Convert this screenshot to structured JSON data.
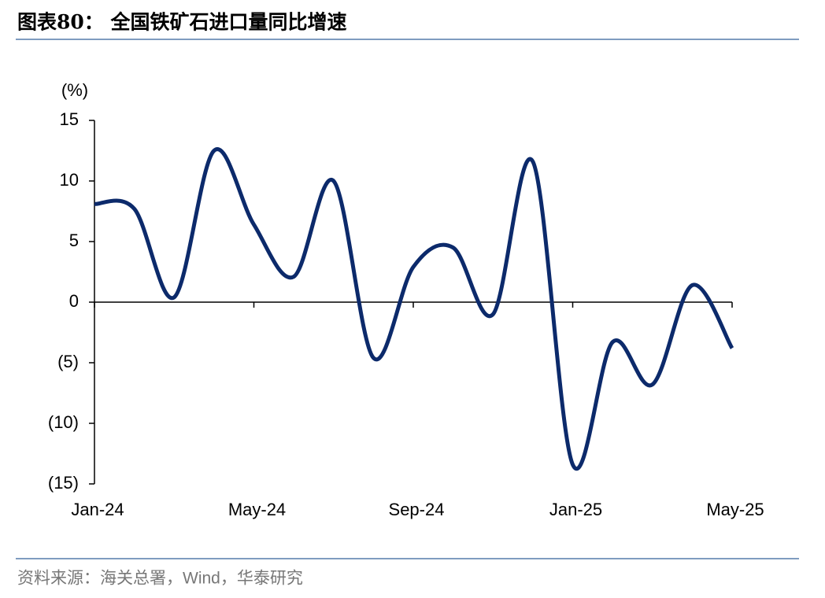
{
  "chart_data": {
    "type": "line",
    "title": "图表80： 全国铁矿石进口量同比增速",
    "source": "资料来源：海关总署，Wind，华泰研究",
    "y_label": "(%)",
    "categories": [
      "Jan-24",
      null,
      null,
      null,
      "May-24",
      null,
      null,
      null,
      "Sep-24",
      null,
      null,
      null,
      "Jan-25",
      null,
      null,
      null,
      "May-25"
    ],
    "series": [
      {
        "name": "全国铁矿石进口量同比增速",
        "color": "#0c2a6b",
        "values": [
          8.1,
          7.7,
          0.4,
          12.5,
          6.4,
          2.1,
          10.0,
          -4.6,
          2.9,
          4.5,
          -1.0,
          11.6,
          -13.4,
          -3.3,
          -6.8,
          1.4,
          -3.8
        ]
      }
    ],
    "ylim": [
      -15,
      15
    ],
    "yticks": [
      15,
      10,
      5,
      0,
      {
        "value": -5,
        "label": "(5)"
      },
      {
        "value": -10,
        "label": "(10)"
      },
      {
        "value": -15,
        "label": "(15)"
      }
    ]
  }
}
